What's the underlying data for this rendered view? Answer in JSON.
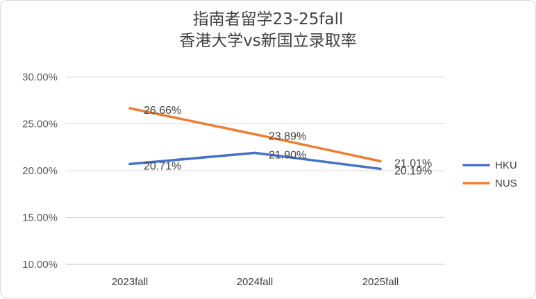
{
  "chart_data": {
    "type": "line",
    "title": [
      "指南者留学23-25fall",
      "香港大学vs新国立录取率"
    ],
    "categories": [
      "2023fall",
      "2024fall",
      "2025fall"
    ],
    "series": [
      {
        "name": "HKU",
        "values": [
          20.71,
          21.9,
          20.19
        ],
        "labels": [
          "20.71%",
          "21.90%",
          "20.19%"
        ],
        "color": "#4472C4"
      },
      {
        "name": "NUS",
        "values": [
          26.66,
          23.89,
          21.01
        ],
        "labels": [
          "26.66%",
          "23.89%",
          "21.01%"
        ],
        "color": "#ED7D31"
      }
    ],
    "ylim": [
      10,
      30
    ],
    "yticks": [
      "10.00%",
      "15.00%",
      "20.00%",
      "25.00%",
      "30.00%"
    ],
    "ytick_values": [
      10,
      15,
      20,
      25,
      30
    ],
    "grid": true,
    "legend": "right"
  }
}
